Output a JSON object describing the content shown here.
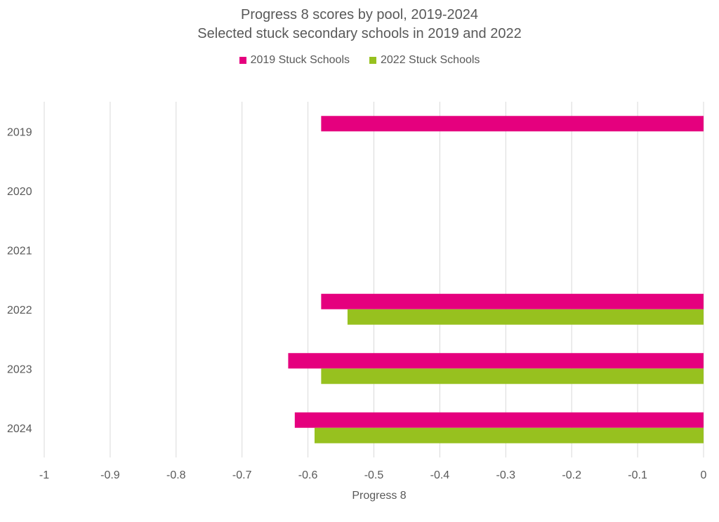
{
  "chart_data": {
    "type": "bar",
    "orientation": "horizontal",
    "title": "Progress 8 scores by pool, 2019-2024",
    "subtitle": "Selected stuck secondary schools in 2019 and 2022",
    "xlabel": "Progress 8",
    "ylabel": "",
    "xlim": [
      -1,
      0
    ],
    "xticks": [
      -1,
      -0.9,
      -0.8,
      -0.7,
      -0.6,
      -0.5,
      -0.4,
      -0.3,
      -0.2,
      -0.1,
      0
    ],
    "categories": [
      "2019",
      "2020",
      "2021",
      "2022",
      "2023",
      "2024"
    ],
    "series": [
      {
        "name": "2019 Stuck Schools",
        "color": "#E5007E",
        "values": [
          -0.58,
          null,
          null,
          -0.58,
          -0.63,
          -0.62
        ]
      },
      {
        "name": "2022 Stuck Schools",
        "color": "#97C11F",
        "values": [
          null,
          null,
          null,
          -0.54,
          -0.58,
          -0.59
        ]
      }
    ],
    "grid": "vertical",
    "legend": "top-center"
  }
}
